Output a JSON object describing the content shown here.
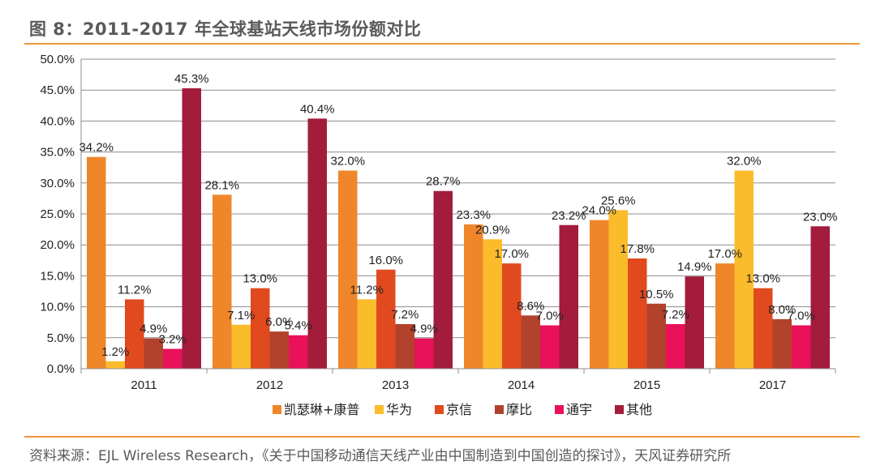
{
  "title": "图 8：2011-2017 年全球基站天线市场份额对比",
  "source": "资料来源：EJL Wireless Research，《关于中国移动通信天线产业由中国制造到中国创造的探讨》，天风证券研究所",
  "chart_data": {
    "type": "bar",
    "title": "",
    "xlabel": "",
    "ylabel": "",
    "ylim": [
      0,
      50
    ],
    "yticks": [
      "0.0%",
      "5.0%",
      "10.0%",
      "15.0%",
      "20.0%",
      "25.0%",
      "30.0%",
      "35.0%",
      "40.0%",
      "45.0%",
      "50.0%"
    ],
    "categories": [
      "2011",
      "2012",
      "2013",
      "2014",
      "2015",
      "2017"
    ],
    "legend_position": "bottom",
    "series": [
      {
        "name": "凯瑟琳+康普",
        "color": "#f0862a",
        "values": [
          34.2,
          28.1,
          32.0,
          23.3,
          24.0,
          17.0
        ],
        "labels": [
          "34.2%",
          "28.1%",
          "32.0%",
          "23.3%",
          "24.0%",
          "17.0%"
        ]
      },
      {
        "name": "华为",
        "color": "#fbbc2c",
        "values": [
          1.2,
          7.1,
          11.2,
          20.9,
          25.6,
          32.0
        ],
        "labels": [
          "1.2%",
          "7.1%",
          "11.2%",
          "20.9%",
          "25.6%",
          "32.0%"
        ]
      },
      {
        "name": "京信",
        "color": "#e04a1e",
        "values": [
          11.2,
          13.0,
          16.0,
          17.0,
          17.8,
          13.0
        ],
        "labels": [
          "11.2%",
          "13.0%",
          "16.0%",
          "17.0%",
          "17.8%",
          "13.0%"
        ]
      },
      {
        "name": "摩比",
        "color": "#b2422c",
        "values": [
          4.9,
          6.0,
          7.2,
          8.6,
          10.5,
          8.0
        ],
        "labels": [
          "4.9%",
          "6.0%",
          "7.2%",
          "8.6%",
          "10.5%",
          "8.0%"
        ]
      },
      {
        "name": "通宇",
        "color": "#e8115a",
        "values": [
          3.2,
          5.4,
          4.9,
          7.0,
          7.2,
          7.0
        ],
        "labels": [
          "3.2%",
          "5.4%",
          "4.9%",
          "7.0%",
          "7.2%",
          "7.0%"
        ]
      },
      {
        "name": "其他",
        "color": "#a31c3c",
        "values": [
          45.3,
          40.4,
          28.7,
          23.2,
          14.9,
          23.0
        ],
        "labels": [
          "45.3%",
          "40.4%",
          "28.7%",
          "23.2%",
          "14.9%",
          "23.0%"
        ]
      }
    ]
  }
}
